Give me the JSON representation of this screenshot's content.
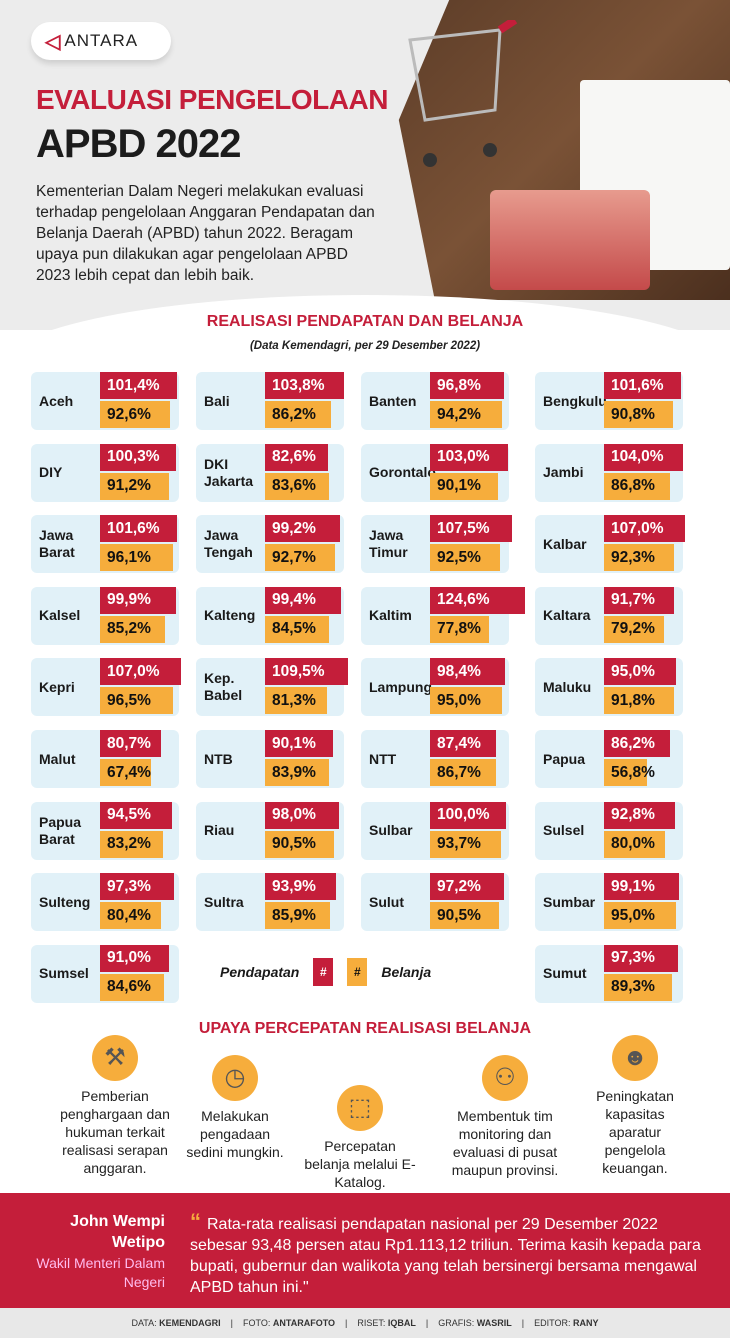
{
  "brand": {
    "logo_text": "ANTARA"
  },
  "header": {
    "title_line1": "EVALUASI PENGELOLAAN",
    "title_line2": "APBD 2022",
    "intro": "Kementerian Dalam Negeri melakukan evaluasi terhadap pengelolaan Anggaran Pendapatan dan Belanja Daerah (APBD) tahun 2022. Beragam upaya pun dilakukan agar pengelolaan APBD 2023 lebih cepat dan lebih baik."
  },
  "colors": {
    "pendapatan": "#c41e3a",
    "belanja": "#f6ad3c",
    "card": "#e1f1f8"
  },
  "realisasi": {
    "title": "REALISASI PENDAPATAN DAN BELANJA",
    "subtitle": "(Data Kemendagri, per 29 Desember 2022)",
    "legend": {
      "pendapatan_label": "Pendapatan",
      "belanja_label": "Belanja",
      "swatch_symbol": "#"
    },
    "provinces": [
      {
        "name": "Aceh",
        "pendapatan": "101,4%",
        "belanja": "92,6%"
      },
      {
        "name": "Bali",
        "pendapatan": "103,8%",
        "belanja": "86,2%"
      },
      {
        "name": "Banten",
        "pendapatan": "96,8%",
        "belanja": "94,2%"
      },
      {
        "name": "Bengkulu",
        "pendapatan": "101,6%",
        "belanja": "90,8%"
      },
      {
        "name": "DIY",
        "pendapatan": "100,3%",
        "belanja": "91,2%"
      },
      {
        "name": "DKI Jakarta",
        "pendapatan": "82,6%",
        "belanja": "83,6%"
      },
      {
        "name": "Gorontalo",
        "pendapatan": "103,0%",
        "belanja": "90,1%"
      },
      {
        "name": "Jambi",
        "pendapatan": "104,0%",
        "belanja": "86,8%"
      },
      {
        "name": "Jawa Barat",
        "pendapatan": "101,6%",
        "belanja": "96,1%"
      },
      {
        "name": "Jawa Tengah",
        "pendapatan": "99,2%",
        "belanja": "92,7%"
      },
      {
        "name": "Jawa Timur",
        "pendapatan": "107,5%",
        "belanja": "92,5%"
      },
      {
        "name": "Kalbar",
        "pendapatan": "107,0%",
        "belanja": "92,3%"
      },
      {
        "name": "Kalsel",
        "pendapatan": "99,9%",
        "belanja": "85,2%"
      },
      {
        "name": "Kalteng",
        "pendapatan": "99,4%",
        "belanja": "84,5%"
      },
      {
        "name": "Kaltim",
        "pendapatan": "124,6%",
        "belanja": "77,8%"
      },
      {
        "name": "Kaltara",
        "pendapatan": "91,7%",
        "belanja": "79,2%"
      },
      {
        "name": "Kepri",
        "pendapatan": "107,0%",
        "belanja": "96,5%"
      },
      {
        "name": "Kep. Babel",
        "pendapatan": "109,5%",
        "belanja": "81,3%"
      },
      {
        "name": "Lampung",
        "pendapatan": "98,4%",
        "belanja": "95,0%"
      },
      {
        "name": "Maluku",
        "pendapatan": "95,0%",
        "belanja": "91,8%"
      },
      {
        "name": "Malut",
        "pendapatan": "80,7%",
        "belanja": "67,4%"
      },
      {
        "name": "NTB",
        "pendapatan": "90,1%",
        "belanja": "83,9%"
      },
      {
        "name": "NTT",
        "pendapatan": "87,4%",
        "belanja": "86,7%"
      },
      {
        "name": "Papua",
        "pendapatan": "86,2%",
        "belanja": "56,8%"
      },
      {
        "name": "Papua Barat",
        "pendapatan": "94,5%",
        "belanja": "83,2%"
      },
      {
        "name": "Riau",
        "pendapatan": "98,0%",
        "belanja": "90,5%"
      },
      {
        "name": "Sulbar",
        "pendapatan": "100,0%",
        "belanja": "93,7%"
      },
      {
        "name": "Sulsel",
        "pendapatan": "92,8%",
        "belanja": "80,0%"
      },
      {
        "name": "Sulteng",
        "pendapatan": "97,3%",
        "belanja": "80,4%"
      },
      {
        "name": "Sultra",
        "pendapatan": "93,9%",
        "belanja": "85,9%"
      },
      {
        "name": "Sulut",
        "pendapatan": "97,2%",
        "belanja": "90,5%"
      },
      {
        "name": "Sumbar",
        "pendapatan": "99,1%",
        "belanja": "95,0%"
      },
      {
        "name": "Sumsel",
        "pendapatan": "91,0%",
        "belanja": "84,6%"
      },
      {
        "name": "Sumut",
        "pendapatan": "97,3%",
        "belanja": "89,3%"
      }
    ]
  },
  "upaya": {
    "title": "UPAYA PERCEPATAN REALISASI BELANJA",
    "items": [
      {
        "icon": "gavel-icon",
        "text": "Pemberian penghargaan dan hukuman terkait realisasi serapan anggaran."
      },
      {
        "icon": "clock-icon",
        "text": "Melakukan pengadaan sedini mungkin."
      },
      {
        "icon": "basket-icon",
        "text": "Percepatan belanja melalui E-Katalog."
      },
      {
        "icon": "team-network-icon",
        "text": "Membentuk tim monitoring dan evaluasi di pusat maupun provinsi."
      },
      {
        "icon": "people-group-icon",
        "text": "Peningkatan kapasitas aparatur pengelola keuangan."
      }
    ]
  },
  "quote": {
    "name": "John Wempi Wetipo",
    "role": "Wakil Menteri Dalam Negeri",
    "mark": "“",
    "text": "Rata-rata realisasi pendapatan nasional per 29 Desember 2022 sebesar 93,48 persen atau Rp1.113,12 triliun. Terima kasih kepada para bupati, gubernur dan walikota yang telah bersinergi bersama mengawal APBD tahun ini.\""
  },
  "credits": [
    {
      "label": "DATA:",
      "value": "KEMENDAGRI"
    },
    {
      "label": "FOTO:",
      "value": "ANTARAFOTO"
    },
    {
      "label": "RISET:",
      "value": "IQBAL"
    },
    {
      "label": "GRAFIS:",
      "value": "WASRIL"
    },
    {
      "label": "EDITOR:",
      "value": "RANY"
    }
  ]
}
